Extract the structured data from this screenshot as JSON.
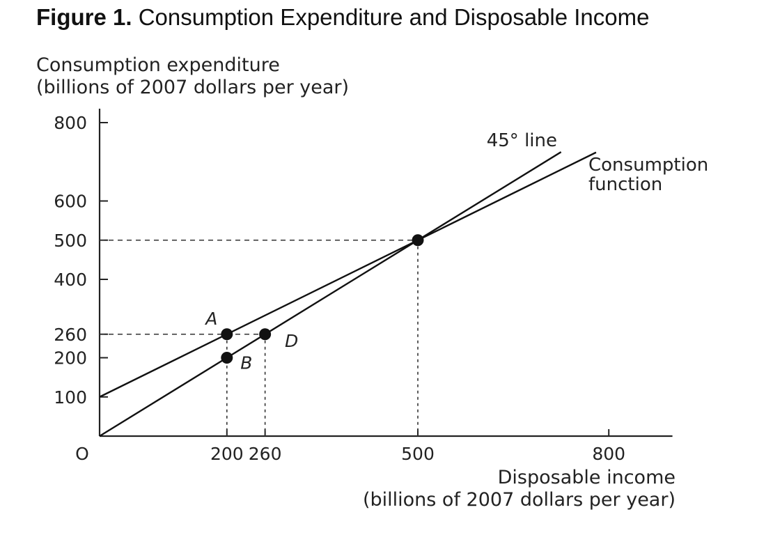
{
  "figure_title": {
    "prefix": "Figure 1.",
    "text": "Consumption Expenditure and Disposable Income"
  },
  "chart_data": {
    "type": "line",
    "title": "Figure 1. Consumption Expenditure and Disposable Income",
    "ylabel_lines": [
      "Consumption expenditure",
      "(billions of 2007 dollars per year)"
    ],
    "xlabel_lines": [
      "Disposable income",
      "(billions of 2007 dollars per year)"
    ],
    "origin_label": "O",
    "xlim": [
      0,
      900
    ],
    "ylim": [
      0,
      800
    ],
    "x_ticks": [
      200,
      260,
      500,
      800
    ],
    "y_ticks": [
      100,
      200,
      260,
      400,
      500,
      600,
      800
    ],
    "grid": false,
    "series": [
      {
        "name": "45° line",
        "x": [
          0,
          725
        ],
        "y": [
          0,
          725
        ]
      },
      {
        "name_lines": [
          "Consumption",
          "function"
        ],
        "x": [
          0,
          780
        ],
        "y": [
          100,
          724
        ]
      }
    ],
    "points": [
      {
        "label": "A",
        "x": 200,
        "y": 260
      },
      {
        "label": "B",
        "x": 200,
        "y": 200
      },
      {
        "label": "D",
        "x": 260,
        "y": 260
      },
      {
        "label": "",
        "x": 500,
        "y": 500
      }
    ],
    "guides": [
      {
        "type": "dashed",
        "x": 200,
        "y": 260
      },
      {
        "type": "dashed",
        "x": 260,
        "y": 260
      },
      {
        "type": "dashed",
        "x": 500,
        "y": 500
      }
    ]
  }
}
